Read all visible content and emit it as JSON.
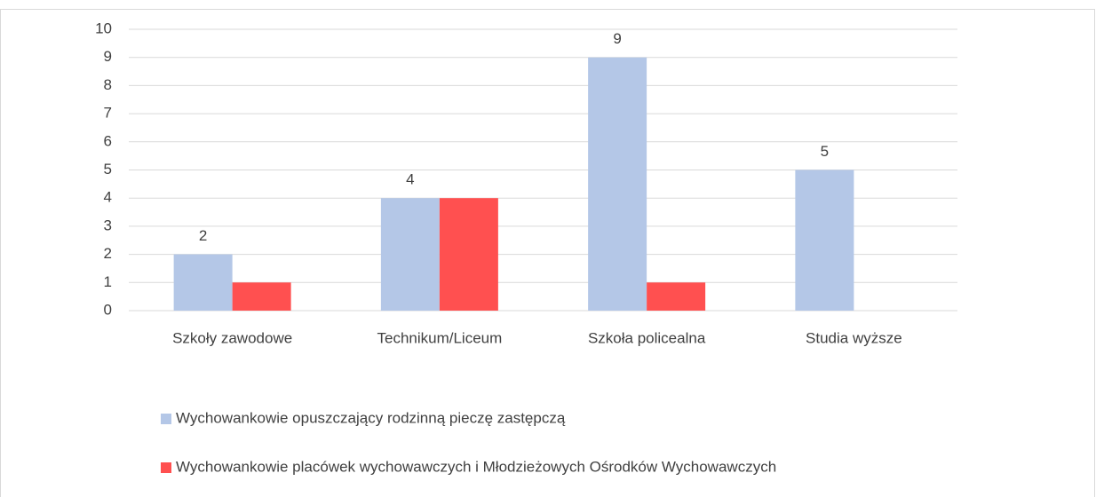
{
  "chart_data": {
    "type": "bar",
    "categories": [
      "Szkoły zawodowe",
      "Technikum/Liceum",
      "Szkoła policealna",
      "Studia wyższe"
    ],
    "series": [
      {
        "name": "Wychowankowie opuszczający rodzinną pieczę zastępczą",
        "color": "#b4c7e7",
        "values": [
          2,
          4,
          9,
          5
        ],
        "data_labels": true
      },
      {
        "name": "Wychowankowie placówek wychowawczych i Młodzieżowych Ośrodków Wychowawczych",
        "color": "#ff5050",
        "values": [
          1,
          4,
          1,
          0
        ],
        "data_labels": false
      }
    ],
    "ylim": [
      0,
      10
    ],
    "yticks": [
      0,
      1,
      2,
      3,
      4,
      5,
      6,
      7,
      8,
      9,
      10
    ],
    "grid": true,
    "legend": "bottom"
  }
}
